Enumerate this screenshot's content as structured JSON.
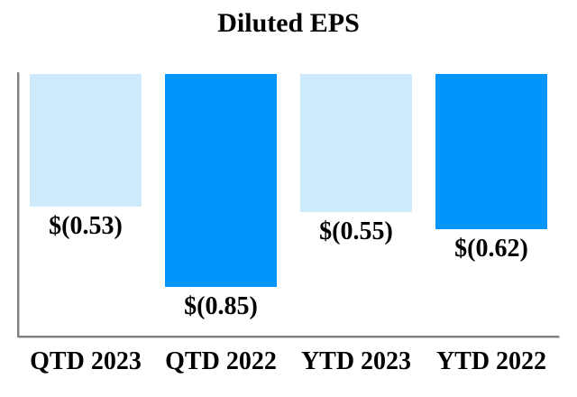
{
  "title": "Diluted EPS",
  "chart_data": {
    "type": "bar",
    "title": "Diluted EPS",
    "categories": [
      "QTD 2023",
      "QTD 2022",
      "YTD 2023",
      "YTD 2022"
    ],
    "values": [
      -0.53,
      -0.85,
      -0.55,
      -0.62
    ],
    "data_labels": [
      "$(0.53)",
      "$(0.85)",
      "$(0.55)",
      "$(0.62)"
    ],
    "bar_colors": [
      "#CDE9FB",
      "#0095FA",
      "#CDE9FB",
      "#0095FA"
    ],
    "xlabel": "",
    "ylabel": "",
    "ylim": [
      -0.9,
      0
    ],
    "baseline": "zero-at-top",
    "bars_direction": "downward",
    "grid": false,
    "legend": false
  },
  "colors": {
    "bar_light_blue": "#CDE9FB",
    "bar_bright_blue": "#0095FA",
    "axis_line": "#7F7F7F",
    "text": "#000000",
    "background": "#FFFFFF"
  }
}
